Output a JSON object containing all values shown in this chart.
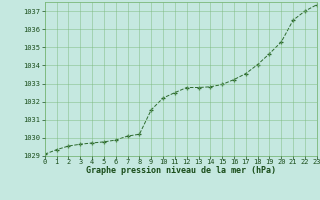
{
  "x": [
    0,
    1,
    2,
    3,
    4,
    5,
    6,
    7,
    8,
    9,
    10,
    11,
    12,
    13,
    14,
    15,
    16,
    17,
    18,
    19,
    20,
    21,
    22,
    23
  ],
  "y": [
    1029.1,
    1029.35,
    1029.55,
    1029.65,
    1029.72,
    1029.78,
    1029.88,
    1030.1,
    1030.2,
    1031.55,
    1032.2,
    1032.5,
    1032.78,
    1032.78,
    1032.82,
    1032.95,
    1033.22,
    1033.55,
    1034.05,
    1034.65,
    1035.3,
    1036.5,
    1037.0,
    1037.35
  ],
  "xlim": [
    0,
    23
  ],
  "ylim": [
    1029.0,
    1037.5
  ],
  "yticks": [
    1029,
    1030,
    1031,
    1032,
    1033,
    1034,
    1035,
    1036,
    1037
  ],
  "xticks": [
    0,
    1,
    2,
    3,
    4,
    5,
    6,
    7,
    8,
    9,
    10,
    11,
    12,
    13,
    14,
    15,
    16,
    17,
    18,
    19,
    20,
    21,
    22,
    23
  ],
  "xlabel": "Graphe pression niveau de la mer (hPa)",
  "line_color": "#2d6a2d",
  "marker_color": "#2d6a2d",
  "bg_color": "#c5e8e0",
  "grid_color": "#7ab87a",
  "text_color": "#1a4d1a",
  "tick_label_fontsize": 5.0,
  "xlabel_fontsize": 6.0
}
